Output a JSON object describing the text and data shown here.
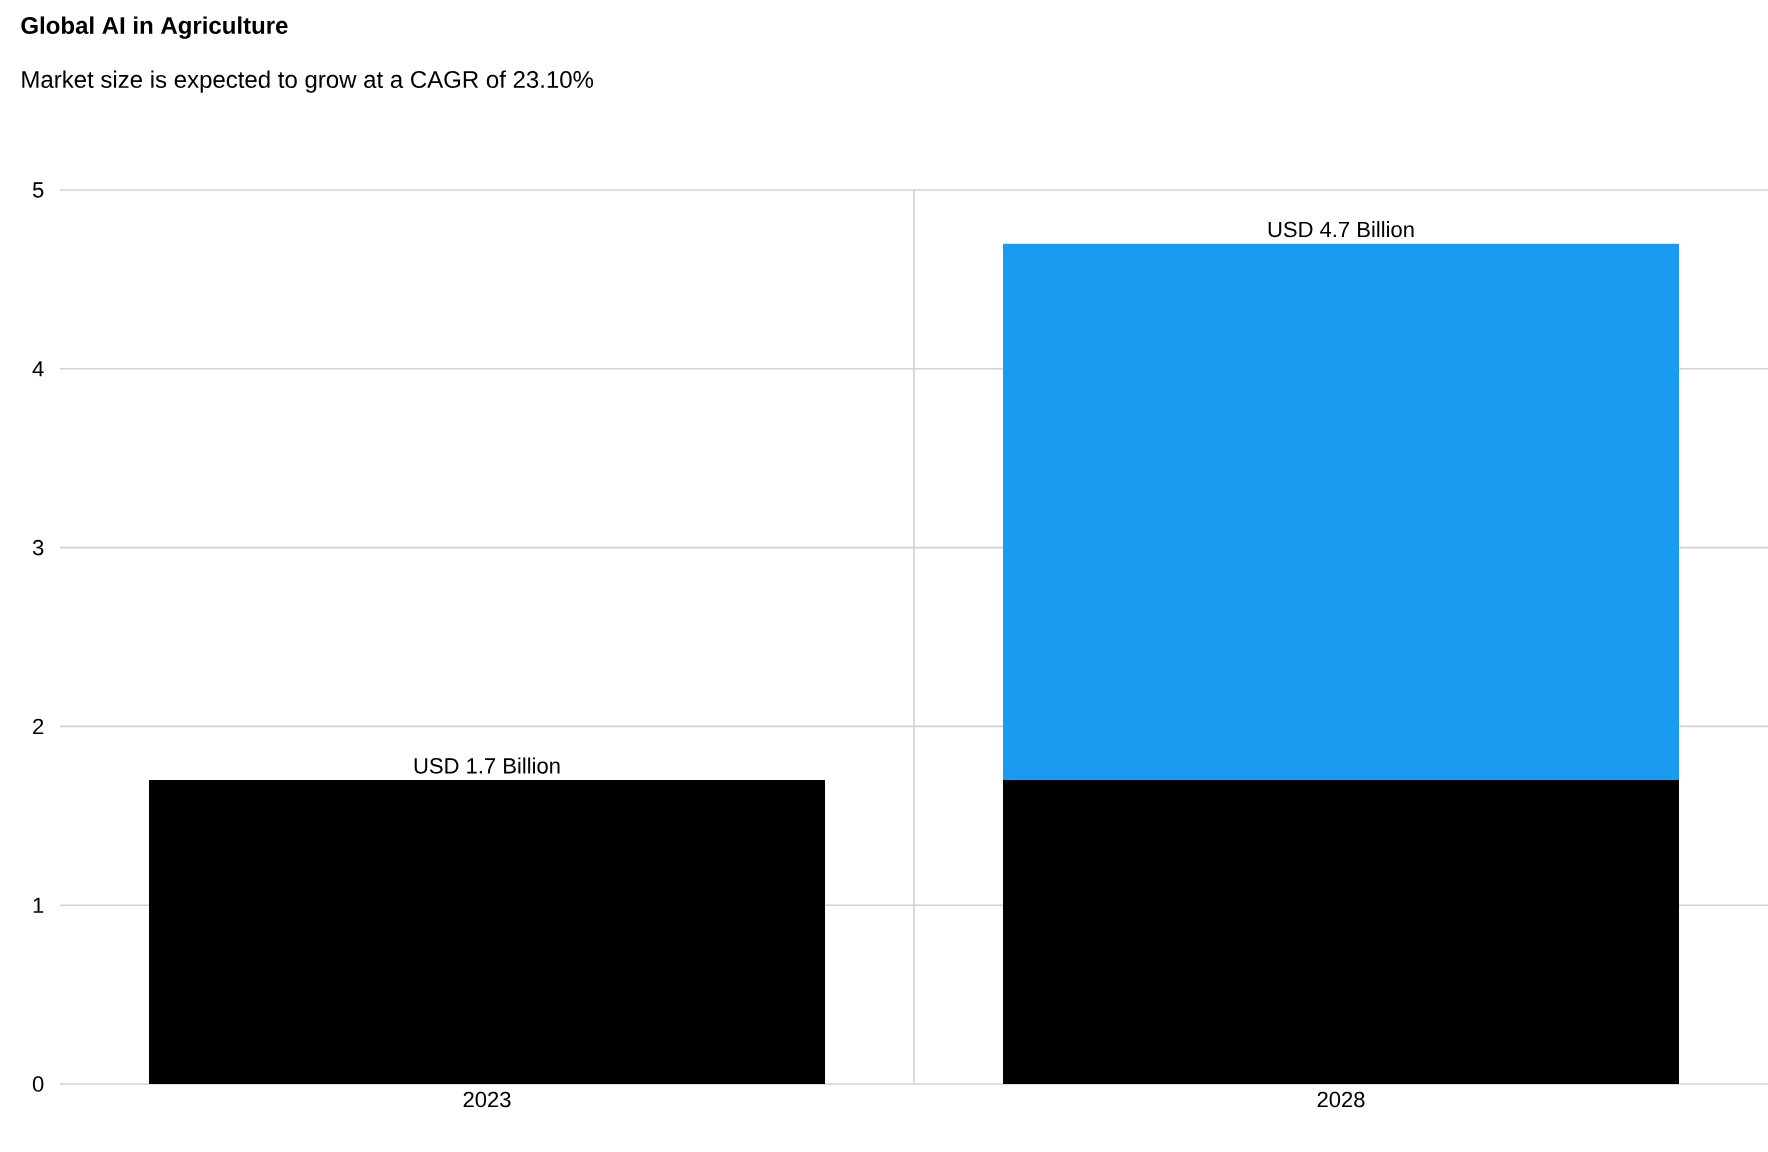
{
  "chart_data": {
    "type": "bar",
    "title": "Global AI in Agriculture",
    "subtitle": "Market size is expected to grow at a CAGR of 23.10%",
    "categories": [
      "2023",
      "2028"
    ],
    "series": [
      {
        "color": "#000000",
        "values": [
          1.7,
          1.7
        ]
      },
      {
        "color": "#1a9bf2",
        "values": [
          null,
          3.0
        ]
      }
    ],
    "stacked": true,
    "totals": [
      "USD 1.7 Billion",
      "USD 4.7 Billion"
    ],
    "ylim": [
      0,
      5
    ],
    "yticks": [
      0,
      1,
      2,
      3,
      4,
      5
    ],
    "grid": true
  }
}
